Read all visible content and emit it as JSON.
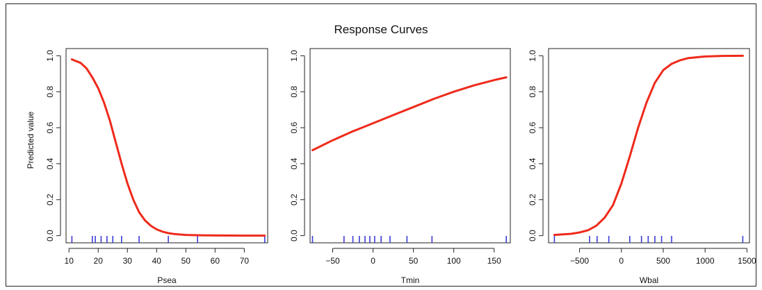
{
  "title": "Response Curves",
  "colors": {
    "curve": "#ee2a1b",
    "rug": "#3b3bd6",
    "axis": "#222222"
  },
  "chart_data": [
    {
      "type": "line",
      "xlabel": "Psea",
      "ylabel": "Predicted value",
      "xlim": [
        9,
        78
      ],
      "ylim": [
        -0.04,
        1.04
      ],
      "xticks": [
        10,
        20,
        30,
        40,
        50,
        60,
        70
      ],
      "yticks": [
        0.0,
        0.2,
        0.4,
        0.6,
        0.8,
        1.0
      ],
      "x": [
        11,
        14,
        16,
        18,
        20,
        22,
        24,
        26,
        28,
        30,
        32,
        34,
        36,
        38,
        40,
        42,
        44,
        46,
        50,
        55,
        60,
        65,
        70,
        77
      ],
      "y": [
        0.98,
        0.96,
        0.93,
        0.88,
        0.82,
        0.74,
        0.64,
        0.52,
        0.4,
        0.29,
        0.2,
        0.13,
        0.085,
        0.055,
        0.035,
        0.022,
        0.014,
        0.009,
        0.004,
        0.002,
        0.001,
        0.0005,
        0.0002,
        0.0001
      ],
      "rug": [
        11,
        18,
        19,
        21,
        23,
        25,
        28,
        34,
        44,
        54,
        77
      ]
    },
    {
      "type": "line",
      "xlabel": "Tmin",
      "ylabel": "",
      "xlim": [
        -78,
        170
      ],
      "ylim": [
        -0.04,
        1.04
      ],
      "xticks": [
        -50,
        0,
        50,
        100,
        150
      ],
      "yticks": [
        0.0,
        0.2,
        0.4,
        0.6,
        0.8,
        1.0
      ],
      "x": [
        -75,
        -50,
        -25,
        0,
        25,
        50,
        75,
        100,
        125,
        150,
        165
      ],
      "y": [
        0.475,
        0.53,
        0.58,
        0.625,
        0.67,
        0.715,
        0.76,
        0.8,
        0.835,
        0.865,
        0.88
      ],
      "rug": [
        -75,
        -36,
        -25,
        -17,
        -10,
        -4,
        2,
        10,
        21,
        42,
        73,
        165
      ]
    },
    {
      "type": "line",
      "xlabel": "Wbal",
      "ylabel": "",
      "xlim": [
        -870,
        1530
      ],
      "ylim": [
        -0.04,
        1.04
      ],
      "xticks": [
        -500,
        0,
        500,
        1000,
        1500
      ],
      "yticks": [
        0.0,
        0.2,
        0.4,
        0.6,
        0.8,
        1.0
      ],
      "x": [
        -800,
        -600,
        -500,
        -400,
        -300,
        -200,
        -100,
        0,
        100,
        200,
        300,
        400,
        500,
        600,
        700,
        800,
        1000,
        1200,
        1450
      ],
      "y": [
        0.004,
        0.01,
        0.018,
        0.03,
        0.055,
        0.1,
        0.17,
        0.29,
        0.44,
        0.6,
        0.74,
        0.85,
        0.92,
        0.955,
        0.975,
        0.987,
        0.996,
        0.999,
        1.0
      ],
      "rug": [
        -800,
        -380,
        -290,
        -150,
        100,
        240,
        320,
        400,
        480,
        600,
        1450
      ]
    }
  ]
}
